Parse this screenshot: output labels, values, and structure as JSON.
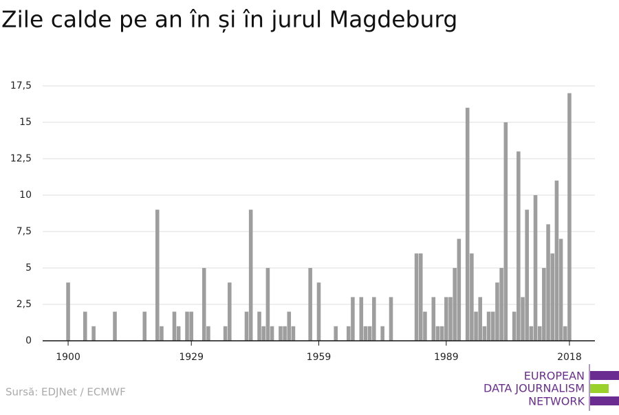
{
  "chart_data": {
    "type": "bar",
    "title": "Zile calde pe an în și în jurul Magdeburg",
    "source": "Sursă: EDJNet / ECMWF",
    "logo": [
      "EUROPEAN",
      "DATA JOURNALISM",
      "NETWORK"
    ],
    "color": "#9e9e9e",
    "grid": true,
    "x": [
      1900,
      1904,
      1906,
      1911,
      1918,
      1921,
      1922,
      1925,
      1926,
      1928,
      1929,
      1932,
      1933,
      1937,
      1938,
      1942,
      1943,
      1945,
      1946,
      1947,
      1948,
      1950,
      1951,
      1952,
      1953,
      1957,
      1959,
      1963,
      1966,
      1967,
      1969,
      1970,
      1971,
      1972,
      1974,
      1976,
      1982,
      1983,
      1984,
      1986,
      1987,
      1988,
      1989,
      1990,
      1991,
      1992,
      1994,
      1995,
      1996,
      1997,
      1998,
      1999,
      2000,
      2001,
      2002,
      2003,
      2005,
      2006,
      2007,
      2008,
      2009,
      2010,
      2011,
      2012,
      2013,
      2014,
      2015,
      2016,
      2017,
      2018
    ],
    "values": [
      4,
      2,
      1,
      2,
      2,
      9,
      1,
      2,
      1,
      2,
      2,
      5,
      1,
      1,
      4,
      2,
      9,
      2,
      1,
      5,
      1,
      1,
      1,
      2,
      1,
      5,
      4,
      1,
      1,
      3,
      3,
      1,
      1,
      3,
      1,
      3,
      6,
      6,
      2,
      3,
      1,
      1,
      3,
      3,
      5,
      7,
      16,
      6,
      2,
      3,
      1,
      2,
      2,
      4,
      5,
      15,
      2,
      13,
      3,
      9,
      1,
      10,
      1,
      5,
      8,
      6,
      11,
      7,
      1,
      17
    ],
    "xlim": [
      1894,
      2024
    ],
    "xticks": [
      1900,
      1929,
      1959,
      1989,
      2018
    ],
    "ylim": [
      0,
      17.5
    ],
    "yticks": [
      0,
      {
        "value": 2.5,
        "label": "2,5"
      },
      5,
      {
        "value": 7.5,
        "label": "7,5"
      },
      10,
      {
        "value": 12.5,
        "label": "12,5"
      },
      15,
      {
        "value": 17.5,
        "label": "17,5"
      }
    ]
  }
}
